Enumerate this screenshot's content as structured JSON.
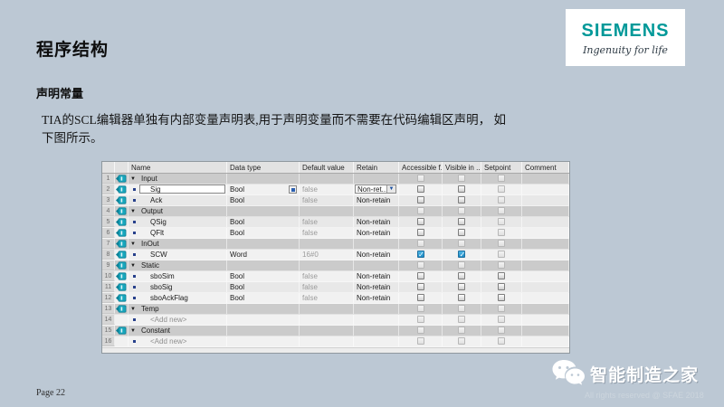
{
  "slide": {
    "title": "程序结构",
    "subtitle": "声明常量",
    "body_line1": "TIA的SCL编辑器单独有内部变量声明表,用于声明变量而不需要在代码编辑区声明， 如",
    "body_line2": "下图所示。",
    "page_label": "Page 22",
    "wechat_name": "智能制造之家",
    "copyright": "All rights reserved @ SFAE 2018"
  },
  "logo": {
    "brand": "SIEMENS",
    "tagline": "Ingenuity for life",
    "brand_color": "#009999"
  },
  "colors": {
    "slide_background": "#bcc8d4",
    "checked_checkbox": "#1d8bc4",
    "tag_icon": "#18a7bd"
  },
  "table": {
    "columns": [
      "",
      "",
      "Name",
      "Data type",
      "Default value",
      "Retain",
      "Accessible f...",
      "Visible in ...",
      "Setpoint",
      "Comment"
    ],
    "rows": [
      {
        "n": "1",
        "icon": true,
        "kind": "section",
        "name": "Input",
        "dt": "",
        "def": "",
        "ret": "",
        "cb": [
          "d",
          "d",
          "d"
        ]
      },
      {
        "n": "2",
        "icon": true,
        "kind": "var",
        "sel": true,
        "name": "Sig",
        "dt": "Bool",
        "typebtn": true,
        "def": "false",
        "ret": "Non-ret...",
        "retdd": true,
        "cb": [
          "u",
          "u",
          "d"
        ]
      },
      {
        "n": "3",
        "icon": true,
        "kind": "var",
        "name": "Ack",
        "dt": "Bool",
        "def": "false",
        "ret": "Non-retain",
        "cb": [
          "u",
          "u",
          "d"
        ]
      },
      {
        "n": "4",
        "icon": true,
        "kind": "section",
        "name": "Output",
        "dt": "",
        "def": "",
        "ret": "",
        "cb": [
          "d",
          "d",
          "d"
        ]
      },
      {
        "n": "5",
        "icon": true,
        "kind": "var",
        "name": "QSig",
        "dt": "Bool",
        "def": "false",
        "ret": "Non-retain",
        "cb": [
          "u",
          "u",
          "d"
        ]
      },
      {
        "n": "6",
        "icon": true,
        "kind": "var",
        "name": "QFlt",
        "dt": "Bool",
        "def": "false",
        "ret": "Non-retain",
        "cb": [
          "u",
          "u",
          "d"
        ]
      },
      {
        "n": "7",
        "icon": true,
        "kind": "section",
        "name": "InOut",
        "dt": "",
        "def": "",
        "ret": "",
        "cb": [
          "d",
          "d",
          "d"
        ]
      },
      {
        "n": "8",
        "icon": true,
        "kind": "var",
        "name": "SCW",
        "dt": "Word",
        "def": "16#0",
        "ret": "Non-retain",
        "cb": [
          "c",
          "c",
          "d"
        ]
      },
      {
        "n": "9",
        "icon": true,
        "kind": "section",
        "name": "Static",
        "dt": "",
        "def": "",
        "ret": "",
        "cb": [
          "d",
          "d",
          "d"
        ]
      },
      {
        "n": "10",
        "icon": true,
        "kind": "var",
        "name": "sboSim",
        "dt": "Bool",
        "def": "false",
        "ret": "Non-retain",
        "cb": [
          "u",
          "u",
          "u"
        ]
      },
      {
        "n": "11",
        "icon": true,
        "kind": "var",
        "name": "sboSig",
        "dt": "Bool",
        "def": "false",
        "ret": "Non-retain",
        "cb": [
          "u",
          "u",
          "u"
        ]
      },
      {
        "n": "12",
        "icon": true,
        "kind": "var",
        "name": "sboAckFlag",
        "dt": "Bool",
        "def": "false",
        "ret": "Non-retain",
        "cb": [
          "u",
          "u",
          "u"
        ]
      },
      {
        "n": "13",
        "icon": true,
        "kind": "section",
        "name": "Temp",
        "dt": "",
        "def": "",
        "ret": "",
        "cb": [
          "d",
          "d",
          "d"
        ]
      },
      {
        "n": "14",
        "icon": false,
        "kind": "add",
        "name": "<Add new>",
        "dt": "",
        "def": "",
        "ret": "",
        "cb": [
          "d",
          "d",
          "d"
        ]
      },
      {
        "n": "15",
        "icon": true,
        "kind": "section",
        "name": "Constant",
        "dt": "",
        "def": "",
        "ret": "",
        "cb": [
          "d",
          "d",
          "d"
        ]
      },
      {
        "n": "16",
        "icon": false,
        "kind": "add",
        "name": "<Add new>",
        "dt": "",
        "def": "",
        "ret": "",
        "cb": [
          "d",
          "d",
          "d"
        ]
      }
    ]
  }
}
